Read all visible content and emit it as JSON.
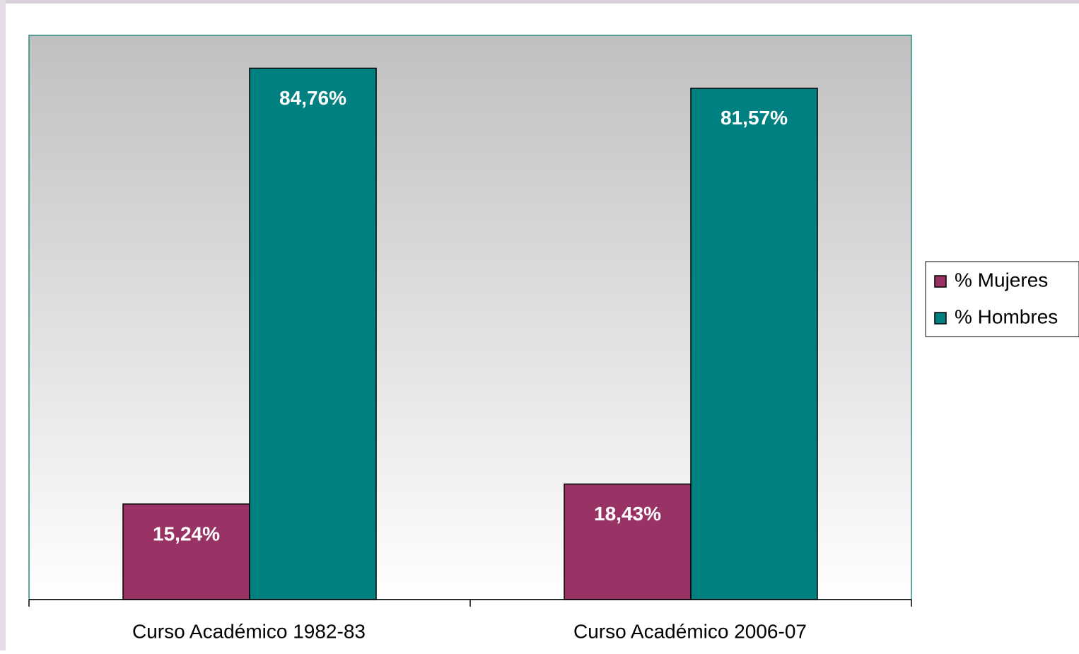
{
  "chart_data": {
    "type": "bar",
    "categories": [
      "Curso Académico 1982-83",
      "Curso Académico 2006-07"
    ],
    "series": [
      {
        "name": "% Mujeres",
        "color": "#993366",
        "values": [
          15.24,
          18.43
        ],
        "value_labels": [
          "15,24%",
          "18,43%"
        ]
      },
      {
        "name": "% Hombres",
        "color": "#008080",
        "values": [
          84.76,
          81.57
        ],
        "value_labels": [
          "84,76%",
          "81,57%"
        ]
      }
    ],
    "ylim": [
      0,
      90
    ],
    "legend": "right"
  }
}
